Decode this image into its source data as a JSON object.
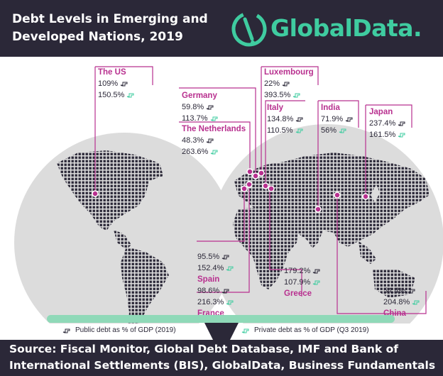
{
  "header": {
    "title_line1": "Debt Levels in Emerging and",
    "title_line2": "Developed Nations, 2019",
    "logo_text": "GlobalData."
  },
  "countries": {
    "us": {
      "name": "The US",
      "public": "109%",
      "private": "150.5%"
    },
    "germany": {
      "name": "Germany",
      "public": "59.8%",
      "private": "113.7%"
    },
    "netherlands": {
      "name": "The Netherlands",
      "public": "48.3%",
      "private": "263.6%"
    },
    "luxembourg": {
      "name": "Luxembourg",
      "public": "22%",
      "private": "393.5%"
    },
    "italy": {
      "name": "Italy",
      "public": "134.8%",
      "private": "110.5%"
    },
    "india": {
      "name": "India",
      "public": "71.9%",
      "private": "56%"
    },
    "japan": {
      "name": "Japan",
      "public": "237.4%",
      "private": "161.5%"
    },
    "spain": {
      "name": "Spain",
      "public": "95.5%",
      "private": "152.4%"
    },
    "france": {
      "name": "France",
      "public": "98.6%",
      "private": "216.3%"
    },
    "greece": {
      "name": "Greece",
      "public": "179.2%",
      "private": "107.9%"
    },
    "china": {
      "name": "China",
      "public": "54.4%",
      "private": "204.8%"
    }
  },
  "legend": {
    "public": "Public debt as % of GDP (2019)",
    "private": "Private debt as % of GDP (Q3 2019)"
  },
  "footer": {
    "source": "Source: Fiscal Monitor, Global Debt Database, IMF and Bank of International Settlements (BIS), GlobalData, Business Fundamentals"
  },
  "colors": {
    "header_bg": "#2b2838",
    "accent_magenta": "#b8308f",
    "accent_green": "#3fcca0",
    "globe_fill": "#dcdcdc",
    "land_dots": "#2b2838",
    "stand_bar": "#8fd9b8"
  }
}
